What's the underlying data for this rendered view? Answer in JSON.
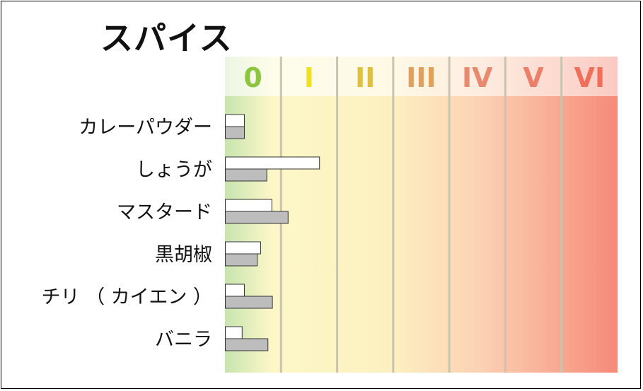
{
  "chart_data": {
    "type": "bar",
    "title": "スパイス",
    "xlabel": "",
    "ylabel": "",
    "x_ticks": [
      "0",
      "I",
      "II",
      "III",
      "IV",
      "V",
      "VI"
    ],
    "x_tick_colors": [
      "#8cc63f",
      "#f0e020",
      "#e0c040",
      "#e0a060",
      "#e88a70",
      "#ec7f6a",
      "#ee6f5a"
    ],
    "xlim": [
      0,
      7
    ],
    "categories": [
      "カレーパウダー",
      "しょうが",
      "マスタード",
      "黒胡椒",
      "チリ （ カイエン ）",
      "バニラ"
    ],
    "series": [
      {
        "values": [
          0.34,
          1.68,
          0.83,
          0.63,
          0.34,
          0.3
        ],
        "color": "#ffffff"
      },
      {
        "values": [
          0.34,
          0.74,
          1.12,
          0.57,
          0.84,
          0.76
        ],
        "color": "#bdbdbd"
      }
    ],
    "background_gradient": [
      "#c8e4b0",
      "#fdf5c8",
      "#fbd0b0",
      "#f58a78"
    ],
    "grid": true
  }
}
